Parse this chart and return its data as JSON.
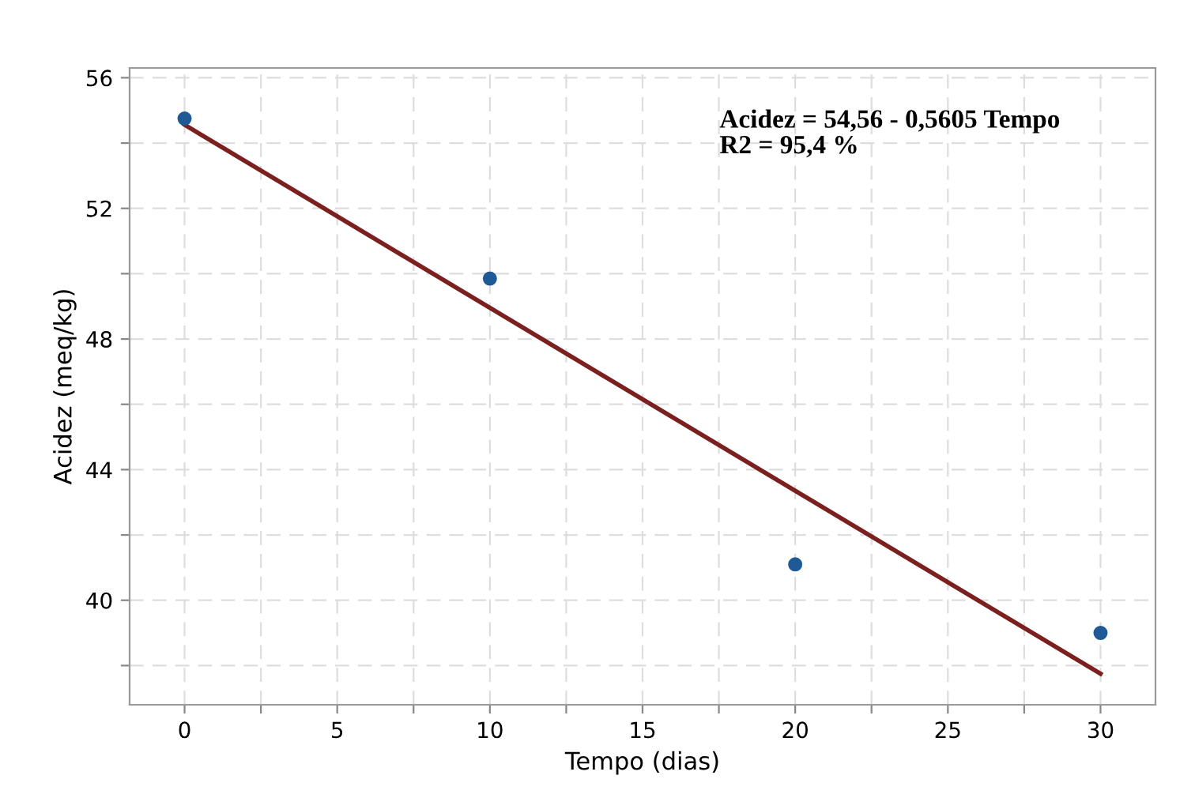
{
  "chart_data": {
    "type": "scatter",
    "xlabel": "Tempo (dias)",
    "ylabel": "Acidez (meq/kg)",
    "x": [
      0,
      10,
      20,
      30
    ],
    "series": [
      {
        "color": "#1f5a96",
        "values": [
          54.75,
          49.85,
          41.1,
          39.0
        ],
        "marker": "circle"
      },
      {
        "type": "line",
        "color": "#7b1f1f",
        "x": [
          0,
          30
        ],
        "values": [
          54.56,
          37.75
        ],
        "marker": "none"
      }
    ],
    "annotations": [
      "Acidez = 54,56 - 0,5605 Tempo\nR2 = 95,4 %"
    ],
    "xlim": [
      -1.8,
      31.8
    ],
    "ylim": [
      36.8,
      56.3
    ],
    "xticks": [
      0,
      {
        "value": 2.5,
        "label": null
      },
      5,
      {
        "value": 7.5,
        "label": null
      },
      10,
      {
        "value": 12.5,
        "label": null
      },
      15,
      {
        "value": 17.5,
        "label": null
      },
      20,
      {
        "value": 22.5,
        "label": null
      },
      25,
      {
        "value": 27.5,
        "label": null
      },
      30
    ],
    "yticks": [
      {
        "value": 38,
        "label": null
      },
      40,
      {
        "value": 42,
        "label": null
      },
      44,
      {
        "value": 46,
        "label": null
      },
      48,
      {
        "value": 50,
        "label": null
      },
      52,
      {
        "value": 54,
        "label": null
      },
      56
    ],
    "grid": true
  }
}
